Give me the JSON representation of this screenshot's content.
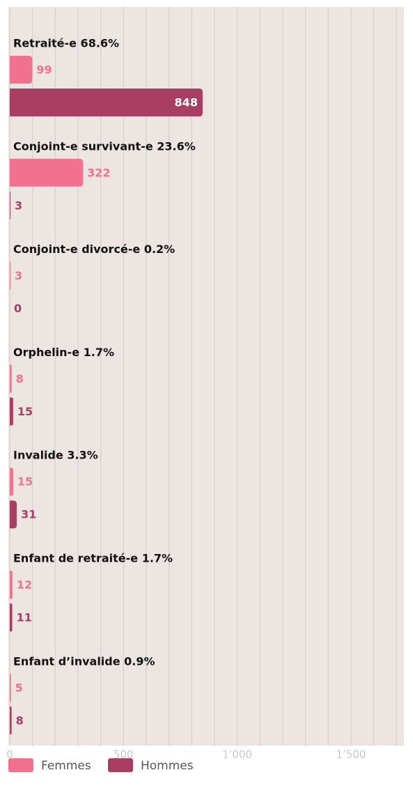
{
  "chart_data": {
    "type": "hbar",
    "categories": [
      "Retraité-e 68.6%",
      "Conjoint-e survivant-e 23.6%",
      "Conjoint-e divorcé-e 0.2%",
      "Orphelin-e 1.7%",
      "Invalide 3.3%",
      "Enfant de retraité-e 1.7%",
      "Enfant d’invalide 0.9%"
    ],
    "series": [
      {
        "name": "Femmes",
        "color": "#f0728f",
        "values": [
          99,
          322,
          3,
          8,
          15,
          12,
          5
        ]
      },
      {
        "name": "Hommes",
        "color": "#a83f62",
        "values": [
          848,
          3,
          0,
          15,
          31,
          11,
          8
        ]
      }
    ],
    "xlim": [
      0,
      1735
    ],
    "xticks": [
      0,
      500,
      {
        "value": 1000,
        "label": "1’000"
      },
      {
        "value": 1500,
        "label": "1’500"
      }
    ],
    "grid_lines": [
      0,
      100,
      200,
      300,
      400,
      500,
      600,
      700,
      800,
      900,
      1000,
      1100,
      1200,
      1300,
      1400,
      1500,
      1600,
      1700
    ],
    "grid": true,
    "legend": "bottom-left"
  }
}
